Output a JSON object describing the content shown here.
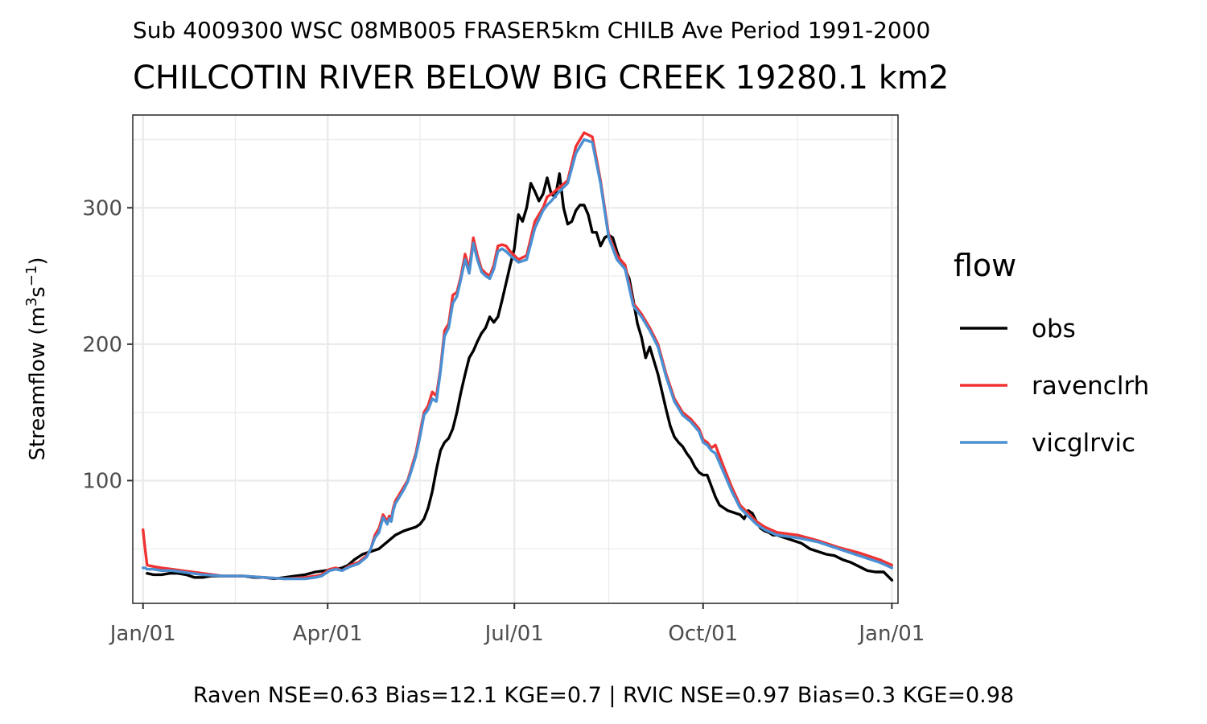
{
  "subtitle": "Sub 4009300 WSC 08MB005 FRASER5km CHILB Ave Period 1991-2000",
  "title": "CHILCOTIN RIVER BELOW BIG CREEK 19280.1 km2",
  "caption": "Raven NSE=0.63 Bias=12.1 KGE=0.7 | RVIC NSE=0.97 Bias=0.3 KGE=0.98",
  "chart_data": {
    "type": "line",
    "title": "CHILCOTIN RIVER BELOW BIG CREEK 19280.1 km2",
    "subtitle": "Sub 4009300 WSC 08MB005 FRASER5km CHILB Ave Period 1991-2000",
    "xlabel": "",
    "ylabel_base": "Streamflow (m",
    "ylabel_sup1": "3",
    "ylabel_mid": "s",
    "ylabel_sup2": "−1",
    "ylabel_end": ")",
    "x_unit": "day of year",
    "xlim": [
      -4,
      369
    ],
    "ylim": [
      10,
      368
    ],
    "x_ticks": [
      {
        "value": 1,
        "label": "Jan/01"
      },
      {
        "value": 91,
        "label": "Apr/01"
      },
      {
        "value": 182,
        "label": "Jul/01"
      },
      {
        "value": 274,
        "label": "Oct/01"
      },
      {
        "value": 366,
        "label": "Jan/01"
      }
    ],
    "x_minor_ticks": [
      46,
      136,
      228,
      320
    ],
    "y_ticks": [
      100,
      200,
      300
    ],
    "y_minor_ticks": [
      50,
      150,
      250,
      350
    ],
    "grid": true,
    "legend": {
      "title": "flow",
      "placement": "right"
    },
    "series": [
      {
        "name": "obs",
        "color": "#000000",
        "x": [
          3,
          6,
          10,
          14,
          18,
          22,
          26,
          30,
          34,
          38,
          45,
          50,
          55,
          60,
          65,
          70,
          75,
          80,
          85,
          90,
          95,
          98,
          101,
          104,
          108,
          112,
          116,
          120,
          124,
          128,
          132,
          134,
          136,
          138,
          140,
          142,
          144,
          146,
          148,
          150,
          152,
          154,
          156,
          158,
          160,
          162,
          164,
          166,
          168,
          170,
          172,
          174,
          176,
          178,
          180,
          182,
          184,
          186,
          188,
          190,
          192,
          194,
          196,
          198,
          200,
          202,
          204,
          206,
          208,
          210,
          212,
          214,
          216,
          218,
          220,
          222,
          224,
          226,
          228,
          230,
          232,
          234,
          236,
          238,
          240,
          242,
          244,
          246,
          248,
          250,
          252,
          254,
          256,
          258,
          260,
          262,
          264,
          266,
          268,
          270,
          272,
          274,
          276,
          278,
          280,
          282,
          284,
          286,
          288,
          290,
          292,
          294,
          296,
          298,
          300,
          302,
          304,
          306,
          308,
          310,
          314,
          318,
          322,
          326,
          330,
          334,
          338,
          342,
          346,
          350,
          354,
          358,
          362,
          364,
          366
        ],
        "values": [
          32,
          31,
          31,
          32,
          32,
          31,
          29,
          29,
          30,
          30,
          30,
          30,
          29,
          29,
          28,
          29,
          30,
          31,
          33,
          34,
          35,
          36,
          38,
          42,
          46,
          48,
          50,
          55,
          60,
          63,
          65,
          66,
          68,
          72,
          80,
          92,
          108,
          122,
          128,
          131,
          138,
          150,
          165,
          178,
          190,
          195,
          202,
          208,
          212,
          220,
          216,
          220,
          232,
          245,
          258,
          270,
          295,
          290,
          300,
          318,
          312,
          305,
          310,
          322,
          310,
          308,
          325,
          300,
          288,
          290,
          298,
          302,
          302,
          295,
          282,
          282,
          272,
          278,
          280,
          278,
          268,
          260,
          255,
          248,
          232,
          215,
          205,
          190,
          198,
          188,
          178,
          165,
          152,
          140,
          132,
          128,
          125,
          120,
          116,
          110,
          106,
          104,
          104,
          96,
          88,
          82,
          80,
          78,
          77,
          76,
          75,
          72,
          78,
          76,
          70,
          65,
          63,
          62,
          60,
          60,
          58,
          56,
          54,
          50,
          48,
          46,
          45,
          42,
          40,
          37,
          34,
          33,
          33,
          30,
          27
        ]
      },
      {
        "name": "ravenclrh",
        "color": "#f03232",
        "x": [
          1,
          2,
          3,
          6,
          10,
          15,
          20,
          30,
          40,
          50,
          60,
          70,
          80,
          85,
          88,
          92,
          95,
          98,
          102,
          106,
          110,
          112,
          114,
          116,
          118,
          120,
          121,
          122,
          123,
          124,
          126,
          128,
          130,
          132,
          134,
          136,
          138,
          140,
          142,
          144,
          146,
          148,
          150,
          152,
          154,
          156,
          158,
          160,
          162,
          164,
          166,
          168,
          170,
          172,
          174,
          176,
          178,
          180,
          184,
          188,
          192,
          196,
          198,
          200,
          204,
          208,
          212,
          216,
          220,
          224,
          228,
          232,
          236,
          240,
          244,
          248,
          252,
          256,
          260,
          264,
          268,
          272,
          274,
          276,
          278,
          280,
          284,
          288,
          292,
          296,
          300,
          304,
          310,
          320,
          330,
          340,
          350,
          360,
          366
        ],
        "values": [
          64,
          50,
          38,
          37,
          36,
          35,
          34,
          32,
          30,
          30,
          29,
          28,
          29,
          30,
          31,
          35,
          36,
          34,
          38,
          40,
          45,
          50,
          60,
          65,
          75,
          70,
          74,
          72,
          80,
          85,
          90,
          95,
          100,
          110,
          120,
          135,
          150,
          155,
          165,
          162,
          182,
          210,
          215,
          236,
          238,
          250,
          266,
          255,
          278,
          265,
          255,
          252,
          250,
          258,
          272,
          273,
          272,
          268,
          262,
          265,
          290,
          300,
          308,
          310,
          315,
          320,
          345,
          355,
          352,
          320,
          280,
          265,
          258,
          230,
          222,
          212,
          200,
          178,
          160,
          150,
          145,
          138,
          130,
          128,
          124,
          126,
          110,
          95,
          82,
          76,
          70,
          66,
          62,
          60,
          56,
          51,
          47,
          42,
          38
        ]
      },
      {
        "name": "vicglrvic",
        "color": "#4a90d2",
        "x": [
          1,
          2,
          3,
          6,
          10,
          15,
          20,
          30,
          40,
          50,
          60,
          70,
          80,
          85,
          88,
          92,
          95,
          98,
          102,
          106,
          110,
          112,
          114,
          116,
          118,
          120,
          121,
          122,
          123,
          124,
          126,
          128,
          130,
          132,
          134,
          136,
          138,
          140,
          142,
          144,
          146,
          148,
          150,
          152,
          154,
          156,
          158,
          160,
          162,
          164,
          166,
          168,
          170,
          172,
          174,
          176,
          178,
          180,
          184,
          188,
          192,
          196,
          198,
          200,
          204,
          208,
          212,
          216,
          220,
          224,
          228,
          232,
          236,
          240,
          244,
          248,
          252,
          256,
          260,
          264,
          268,
          272,
          274,
          276,
          278,
          280,
          284,
          288,
          292,
          296,
          300,
          304,
          310,
          320,
          330,
          340,
          350,
          360,
          366
        ],
        "values": [
          36,
          36,
          35,
          35,
          34,
          34,
          33,
          31,
          30,
          30,
          29,
          28,
          28,
          29,
          30,
          34,
          35,
          34,
          37,
          39,
          44,
          50,
          58,
          62,
          73,
          68,
          72,
          70,
          78,
          83,
          88,
          93,
          99,
          108,
          118,
          132,
          148,
          152,
          160,
          158,
          180,
          206,
          212,
          230,
          235,
          248,
          262,
          252,
          274,
          262,
          253,
          250,
          248,
          255,
          268,
          270,
          268,
          265,
          260,
          262,
          285,
          298,
          302,
          305,
          312,
          318,
          340,
          350,
          348,
          318,
          278,
          262,
          255,
          228,
          220,
          210,
          198,
          176,
          158,
          148,
          143,
          136,
          128,
          126,
          122,
          120,
          106,
          92,
          80,
          74,
          68,
          64,
          60,
          58,
          55,
          50,
          45,
          40,
          36
        ]
      }
    ]
  }
}
